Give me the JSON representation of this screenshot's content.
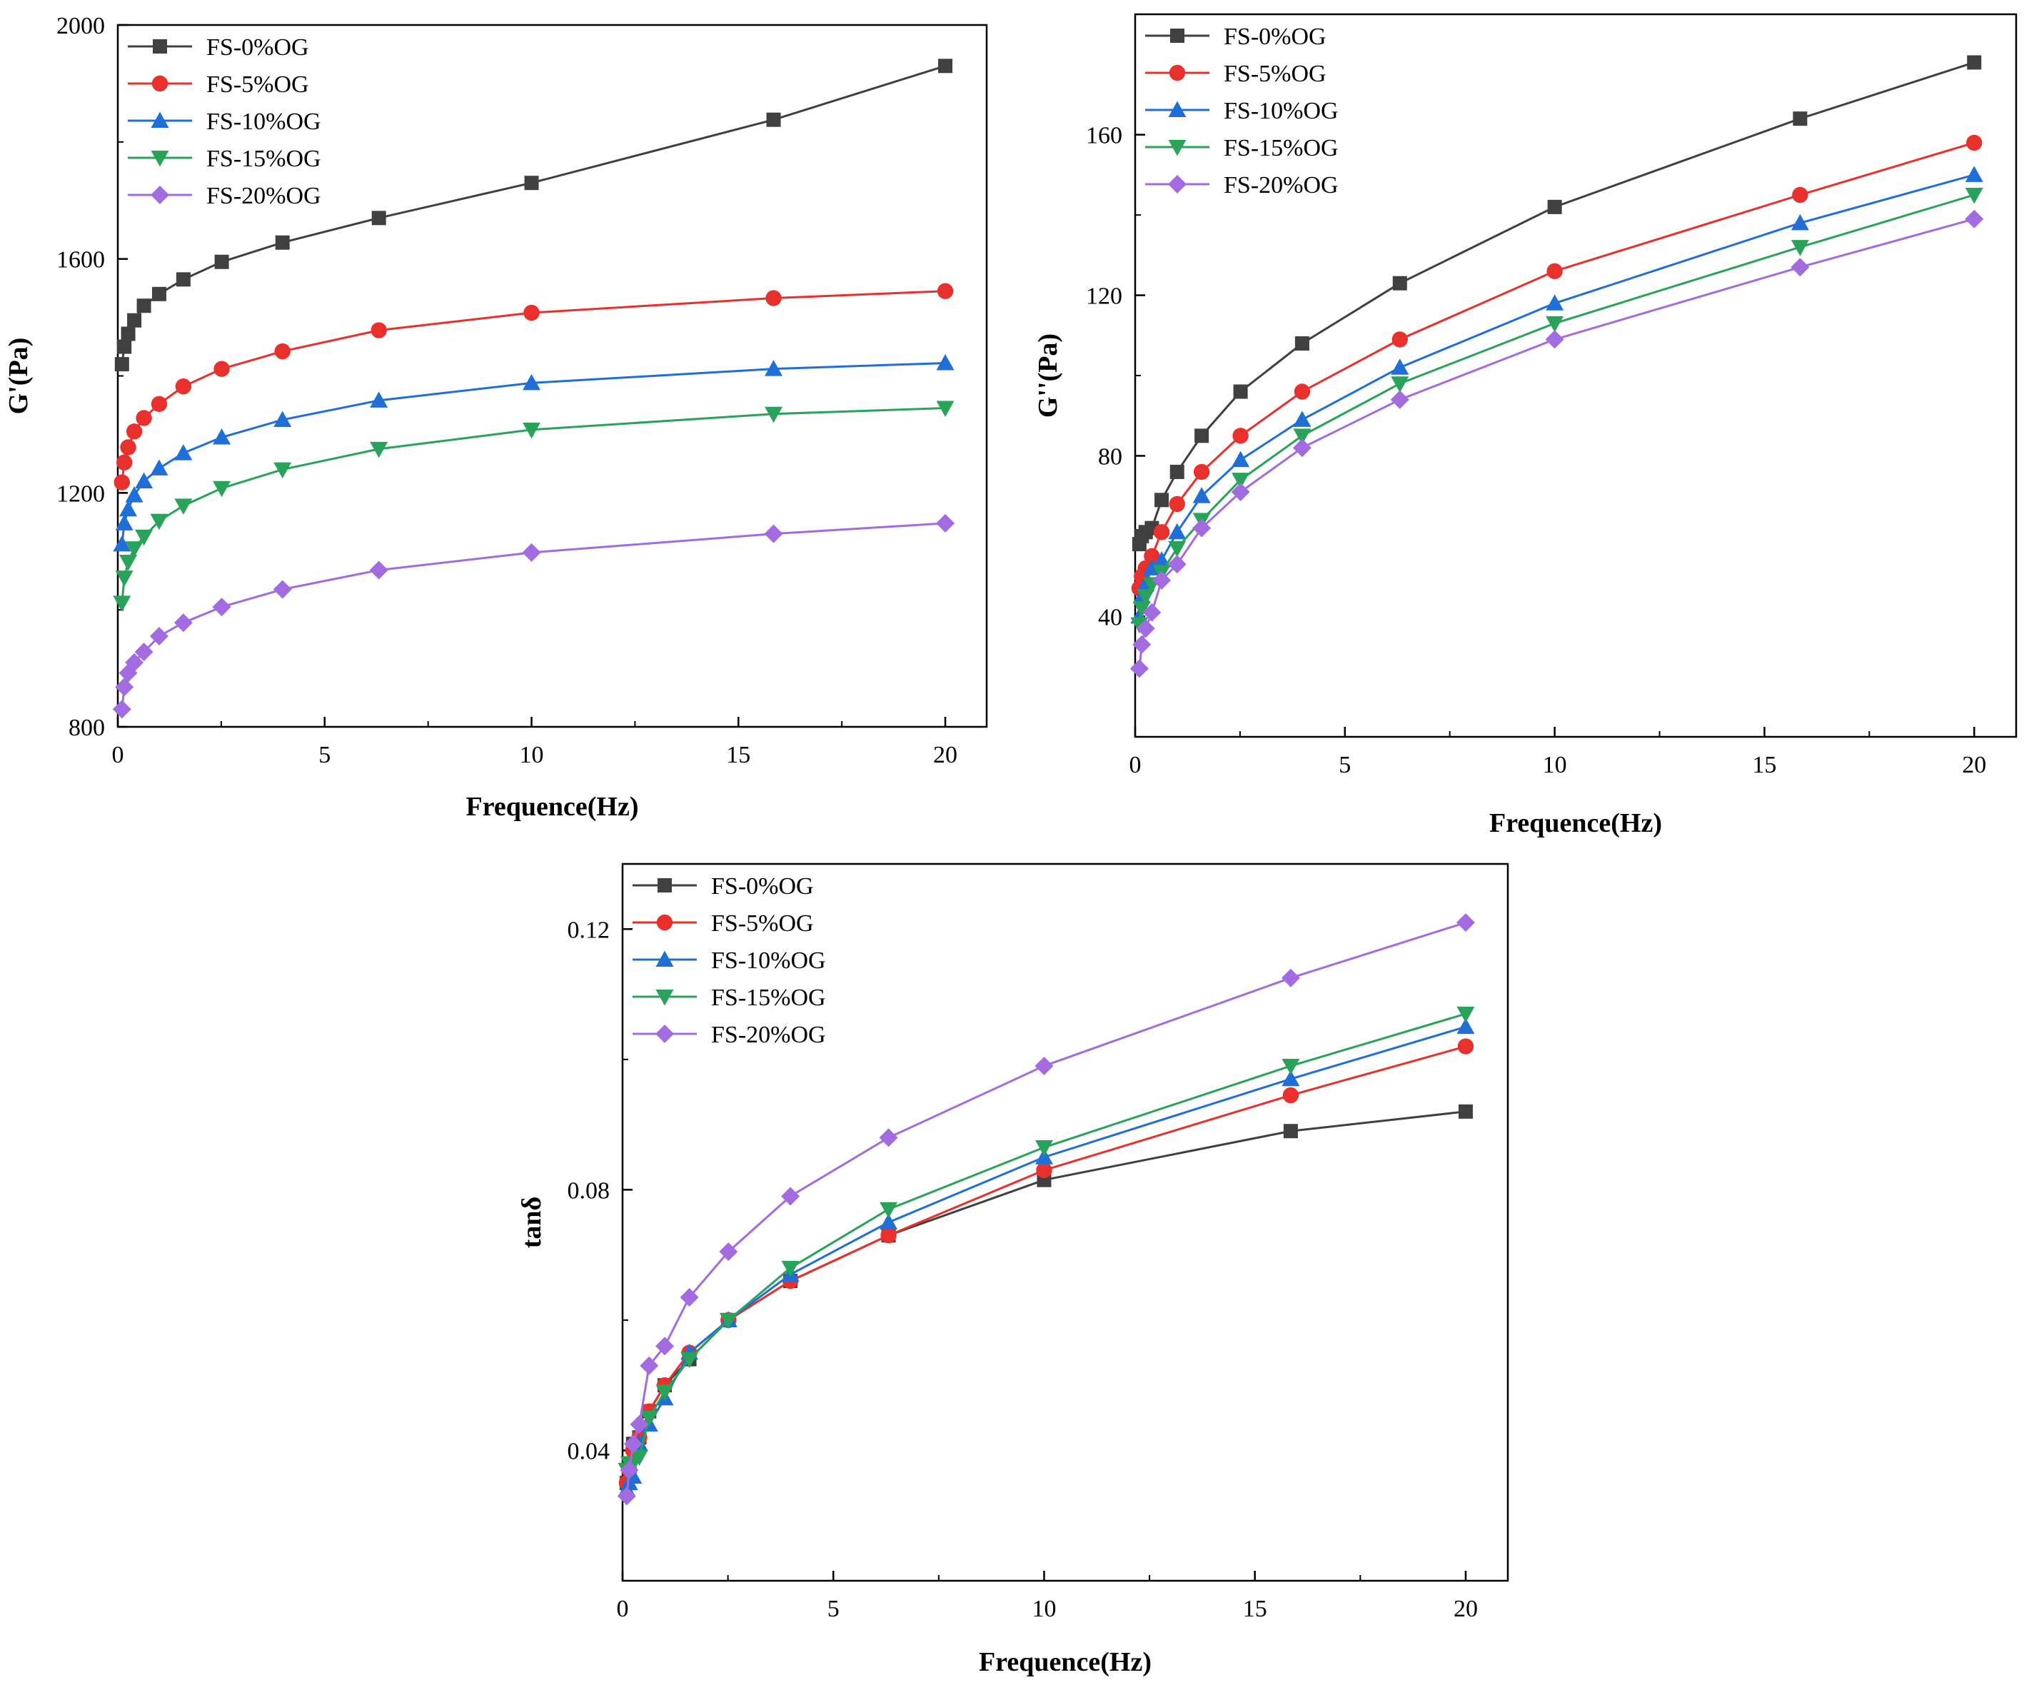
{
  "figure": {
    "series_styles": [
      {
        "name": "FS-0%OG",
        "color": "#404040",
        "marker": "square"
      },
      {
        "name": "FS-5%OG",
        "color": "#e8302c",
        "marker": "circle"
      },
      {
        "name": "FS-10%OG",
        "color": "#1f6fd6",
        "marker": "triangle-up"
      },
      {
        "name": "FS-15%OG",
        "color": "#2aa35a",
        "marker": "triangle-down"
      },
      {
        "name": "FS-20%OG",
        "color": "#a36be0",
        "marker": "diamond"
      }
    ]
  },
  "chart_data": [
    {
      "id": "storage-modulus",
      "type": "line",
      "title": "",
      "xlabel": "Frequence(Hz)",
      "ylabel": "G'(Pa)",
      "xlim": [
        0,
        21
      ],
      "ylim": [
        800,
        2000
      ],
      "xticks": [
        0,
        5,
        10,
        15,
        20
      ],
      "yticks": [
        800,
        1200,
        1600,
        2000
      ],
      "legend": "top-left",
      "x": [
        0.1,
        0.158,
        0.251,
        0.398,
        0.631,
        1,
        1.585,
        2.512,
        3.981,
        6.31,
        10,
        15.85,
        20
      ],
      "series": [
        {
          "name": "FS-0%OG",
          "values": [
            1420,
            1450,
            1472,
            1495,
            1520,
            1540,
            1565,
            1595,
            1628,
            1670,
            1730,
            1838,
            1930
          ]
        },
        {
          "name": "FS-5%OG",
          "values": [
            1218,
            1252,
            1278,
            1305,
            1328,
            1352,
            1382,
            1412,
            1442,
            1478,
            1508,
            1533,
            1545
          ]
        },
        {
          "name": "FS-10%OG",
          "values": [
            1112,
            1148,
            1172,
            1196,
            1220,
            1242,
            1268,
            1295,
            1325,
            1358,
            1388,
            1412,
            1422
          ]
        },
        {
          "name": "FS-15%OG",
          "values": [
            1012,
            1055,
            1082,
            1105,
            1125,
            1152,
            1178,
            1208,
            1240,
            1275,
            1308,
            1335,
            1345
          ]
        },
        {
          "name": "FS-20%OG",
          "values": [
            830,
            868,
            892,
            910,
            928,
            955,
            978,
            1005,
            1035,
            1068,
            1098,
            1130,
            1148
          ]
        }
      ]
    },
    {
      "id": "loss-modulus",
      "type": "line",
      "title": "",
      "xlabel": "Frequence(Hz)",
      "ylabel": "G''(Pa)",
      "xlim": [
        0,
        21
      ],
      "ylim": [
        10,
        190
      ],
      "xticks": [
        0,
        5,
        10,
        15,
        20
      ],
      "yticks": [
        40,
        80,
        120,
        160
      ],
      "legend": "top-left",
      "x": [
        0.1,
        0.158,
        0.251,
        0.398,
        0.631,
        1,
        1.585,
        2.512,
        3.981,
        6.31,
        10,
        15.85,
        20
      ],
      "series": [
        {
          "name": "FS-0%OG",
          "values": [
            58,
            60,
            61,
            62,
            69,
            76,
            85,
            96,
            108,
            123,
            142,
            164,
            178
          ]
        },
        {
          "name": "FS-5%OG",
          "values": [
            47,
            50,
            52,
            55,
            61,
            68,
            76,
            85,
            96,
            109,
            126,
            145,
            158
          ]
        },
        {
          "name": "FS-10%OG",
          "values": [
            40,
            45,
            48,
            52,
            54,
            61,
            70,
            79,
            89,
            102,
            118,
            138,
            150
          ]
        },
        {
          "name": "FS-15%OG",
          "values": [
            38,
            42,
            45,
            48,
            51,
            57,
            64,
            74,
            85,
            98,
            113,
            132,
            145
          ]
        },
        {
          "name": "FS-20%OG",
          "values": [
            27,
            33,
            37,
            41,
            49,
            53,
            62,
            71,
            82,
            94,
            109,
            127,
            139
          ]
        }
      ]
    },
    {
      "id": "loss-tangent",
      "type": "line",
      "title": "",
      "xlabel": "Frequence(Hz)",
      "ylabel": "tanδ",
      "xlim": [
        0,
        21
      ],
      "ylim": [
        0.02,
        0.13
      ],
      "xticks": [
        0,
        5,
        10,
        15,
        20
      ],
      "yticks": [
        0.04,
        0.08,
        0.12
      ],
      "legend": "top-left",
      "x": [
        0.1,
        0.158,
        0.251,
        0.398,
        0.631,
        1,
        1.585,
        2.512,
        3.981,
        6.31,
        10,
        15.85,
        20
      ],
      "series": [
        {
          "name": "FS-0%OG",
          "values": [
            0.035,
            0.038,
            0.041,
            0.042,
            0.046,
            0.05,
            0.054,
            0.06,
            0.066,
            0.073,
            0.0815,
            0.089,
            0.092
          ]
        },
        {
          "name": "FS-5%OG",
          "values": [
            0.035,
            0.037,
            0.04,
            0.042,
            0.046,
            0.05,
            0.055,
            0.06,
            0.066,
            0.073,
            0.083,
            0.0945,
            0.102
          ]
        },
        {
          "name": "FS-10%OG",
          "values": [
            0.034,
            0.035,
            0.036,
            0.041,
            0.044,
            0.048,
            0.055,
            0.06,
            0.067,
            0.075,
            0.085,
            0.097,
            0.105
          ]
        },
        {
          "name": "FS-15%OG",
          "values": [
            0.037,
            0.038,
            0.038,
            0.039,
            0.045,
            0.049,
            0.054,
            0.06,
            0.068,
            0.077,
            0.0865,
            0.099,
            0.107
          ]
        },
        {
          "name": "FS-20%OG",
          "values": [
            0.033,
            0.037,
            0.041,
            0.044,
            0.053,
            0.056,
            0.0635,
            0.0705,
            0.079,
            0.088,
            0.099,
            0.1125,
            0.121
          ]
        }
      ]
    }
  ]
}
